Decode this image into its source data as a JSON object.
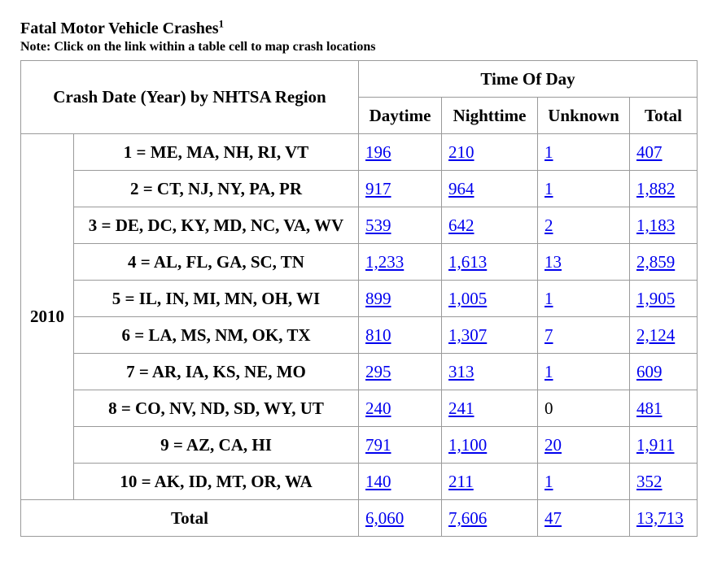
{
  "title": "Fatal Motor Vehicle Crashes",
  "title_sup": "1",
  "note": "Note: Click on the link within a table cell to map crash locations",
  "table": {
    "row_header": "Crash Date (Year) by NHTSA Region",
    "group_header": "Time Of Day",
    "columns": [
      "Daytime",
      "Nighttime",
      "Unknown",
      "Total"
    ],
    "year": "2010",
    "rows": [
      {
        "region": "1 = ME, MA, NH, RI, VT",
        "values": [
          "196",
          "210",
          "1",
          "407"
        ],
        "links": [
          true,
          true,
          true,
          true
        ]
      },
      {
        "region": "2 = CT, NJ, NY, PA, PR",
        "values": [
          "917",
          "964",
          "1",
          "1,882"
        ],
        "links": [
          true,
          true,
          true,
          true
        ]
      },
      {
        "region": "3 = DE, DC, KY, MD, NC, VA, WV",
        "values": [
          "539",
          "642",
          "2",
          "1,183"
        ],
        "links": [
          true,
          true,
          true,
          true
        ]
      },
      {
        "region": "4 = AL, FL, GA, SC, TN",
        "values": [
          "1,233",
          "1,613",
          "13",
          "2,859"
        ],
        "links": [
          true,
          true,
          true,
          true
        ]
      },
      {
        "region": "5 = IL, IN, MI, MN, OH, WI",
        "values": [
          "899",
          "1,005",
          "1",
          "1,905"
        ],
        "links": [
          true,
          true,
          true,
          true
        ]
      },
      {
        "region": "6 = LA, MS, NM, OK, TX",
        "values": [
          "810",
          "1,307",
          "7",
          "2,124"
        ],
        "links": [
          true,
          true,
          true,
          true
        ]
      },
      {
        "region": "7 = AR, IA, KS, NE, MO",
        "values": [
          "295",
          "313",
          "1",
          "609"
        ],
        "links": [
          true,
          true,
          true,
          true
        ]
      },
      {
        "region": "8 = CO, NV, ND, SD, WY, UT",
        "values": [
          "240",
          "241",
          "0",
          "481"
        ],
        "links": [
          true,
          true,
          false,
          true
        ]
      },
      {
        "region": "9 = AZ, CA, HI",
        "values": [
          "791",
          "1,100",
          "20",
          "1,911"
        ],
        "links": [
          true,
          true,
          true,
          true
        ]
      },
      {
        "region": "10 = AK, ID, MT, OR, WA",
        "values": [
          "140",
          "211",
          "1",
          "352"
        ],
        "links": [
          true,
          true,
          true,
          true
        ]
      }
    ],
    "total_row": {
      "label": "Total",
      "values": [
        "6,060",
        "7,606",
        "47",
        "13,713"
      ]
    }
  }
}
